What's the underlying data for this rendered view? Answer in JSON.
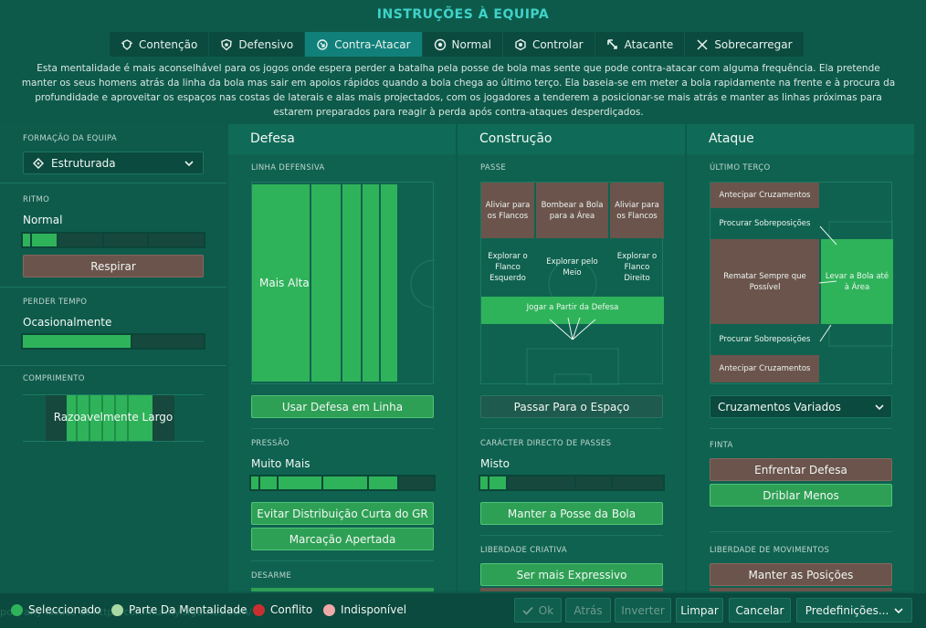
{
  "title": "INSTRUÇÕES À EQUIPA",
  "tabs": [
    {
      "label": "Contenção",
      "icon": "shield-wings-icon"
    },
    {
      "label": "Defensivo",
      "icon": "shield-icon"
    },
    {
      "label": "Contra-Atacar",
      "icon": "counter-attack-icon"
    },
    {
      "label": "Normal",
      "icon": "ball-icon"
    },
    {
      "label": "Controlar",
      "icon": "hexagon-ball-icon"
    },
    {
      "label": "Atacante",
      "icon": "attack-arrow-icon"
    },
    {
      "label": "Sobrecarregar",
      "icon": "overload-icon"
    }
  ],
  "description": "Esta mentalidade é mais aconselhável para os jogos onde espera perder a batalha pela posse de bola mas sente que pode contra-atacar com alguma frequência. Ela pretende manter os seus homens atrás da linha da bola mas sair em apoios rápidos quando a bola chega ao último terço. Ela baseia-se em meter a bola rapidamente na frente e à procura da profundidade e aproveitar os espaços nas costas de laterais e alas mais projectados, com os jogadores a tenderem a posicionar-se mais atrás e manter as linhas próximas para estarem preparados para reagir à perda após contra-ataques desperdiçados.",
  "left": {
    "formation_label": "FORMAÇÃO DA EQUIPA",
    "formation_value": "Estruturada",
    "ritmo_label": "RITMO",
    "ritmo_value": "Normal",
    "ritmo_level": 0.2,
    "respirar": "Respirar",
    "perder_label": "PERDER TEMPO",
    "perder_value": "Ocasionalmente",
    "perder_level": 0.6,
    "comprimento_label": "COMPRIMENTO",
    "comprimento_value": "Razoavelmente Largo"
  },
  "defesa": {
    "title": "Defesa",
    "linha_label": "LINHA DEFENSIVA",
    "linha_value": "Mais Alta",
    "usar_btn": "Usar Defesa em Linha",
    "pressao_label": "PRESSÃO",
    "pressao_value": "Muito Mais",
    "pressao_level": 0.8,
    "evitar_btn": "Evitar Distribuição Curta do GR",
    "marcacao_btn": "Marcação Apertada",
    "desarme_label": "DESARME"
  },
  "construcao": {
    "title": "Construção",
    "passe_label": "PASSE",
    "cells": {
      "aliviar_l": "Aliviar para os Flancos",
      "bombear": "Bombear a Bola para a Área",
      "aliviar_r": "Aliviar para os Flancos",
      "explorar_l": "Explorar o Flanco Esquerdo",
      "explorar_m": "Explorar pelo Meio",
      "explorar_r": "Explorar o Flanco Direito",
      "jogar": "Jogar a Partir da Defesa"
    },
    "passar_btn": "Passar Para o Espaço",
    "caracter_label": "CARÁCTER DIRECTO DE PASSES",
    "caracter_value": "Misto",
    "caracter_level": 0.2,
    "manter_btn": "Manter a Posse da Bola",
    "liberdade_label": "LIBERDADE CRIATIVA",
    "expressivo_btn": "Ser mais Expressivo"
  },
  "ataque": {
    "title": "Ataque",
    "ultimo_label": "ÚLTIMO TERÇO",
    "cells": {
      "antecipar_top": "Antecipar Cruzamentos",
      "procurar_top": "Procurar Sobreposições",
      "rematar": "Rematar Sempre que Possível",
      "levar": "Levar a Bola até à Área",
      "procurar_bot": "Procurar Sobreposições",
      "antecipar_bot": "Antecipar Cruzamentos"
    },
    "cruzamentos_value": "Cruzamentos Variados",
    "finta_label": "FINTA",
    "enfrentar_btn": "Enfrentar Defesa",
    "driblar_btn": "Driblar Menos",
    "movimentos_label": "LIBERDADE DE MOVIMENTOS",
    "manter_btn": "Manter as Posições"
  },
  "legend": [
    {
      "label": "Seleccionado",
      "color": "#2fb35a"
    },
    {
      "label": "Parte Da Mentalidade",
      "color": "#a7d9a2"
    },
    {
      "label": "Conflito",
      "color": "#c8302f"
    },
    {
      "label": "Indisponível",
      "color": "#f0a9a9"
    }
  ],
  "ghost_text": "port any issues at http://community.sigames.com/",
  "bottom": {
    "ok": "Ok",
    "atras": "Atrás",
    "inverter": "Inverter",
    "limpar": "Limpar",
    "cancelar": "Cancelar",
    "predef": "Predefinições..."
  }
}
